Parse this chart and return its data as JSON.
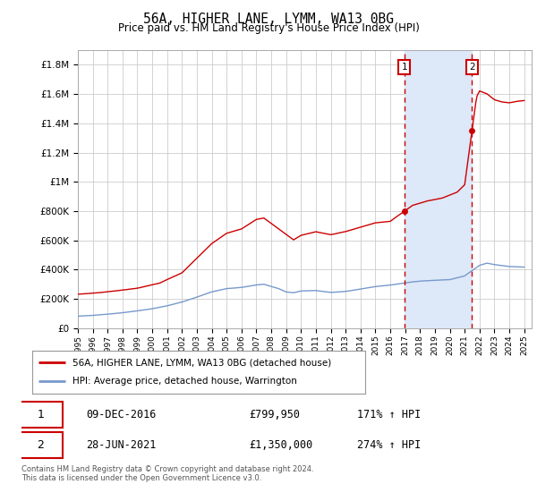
{
  "title": "56A, HIGHER LANE, LYMM, WA13 0BG",
  "subtitle": "Price paid vs. HM Land Registry's House Price Index (HPI)",
  "ylabel_ticks": [
    "£0",
    "£200K",
    "£400K",
    "£600K",
    "£800K",
    "£1M",
    "£1.2M",
    "£1.4M",
    "£1.6M",
    "£1.8M"
  ],
  "ytick_values": [
    0,
    200000,
    400000,
    600000,
    800000,
    1000000,
    1200000,
    1400000,
    1600000,
    1800000
  ],
  "ylim": [
    0,
    1900000
  ],
  "xlim_start": 1995.0,
  "xlim_end": 2025.5,
  "background_color": "#ffffff",
  "plot_background": "#ffffff",
  "grid_color": "#cccccc",
  "red_line_color": "#cc0000",
  "blue_line_color": "#7799cc",
  "shade_color": "#dde8f8",
  "marker1_date": 2016.94,
  "marker1_value": 799950,
  "marker1_label": "1",
  "marker1_text": "09-DEC-2016",
  "marker1_price": "£799,950",
  "marker1_hpi": "171% ↑ HPI",
  "marker2_date": 2021.49,
  "marker2_value": 1350000,
  "marker2_label": "2",
  "marker2_text": "28-JUN-2021",
  "marker2_price": "£1,350,000",
  "marker2_hpi": "274% ↑ HPI",
  "legend_line1": "56A, HIGHER LANE, LYMM, WA13 0BG (detached house)",
  "legend_line2": "HPI: Average price, detached house, Warrington",
  "footer": "Contains HM Land Registry data © Crown copyright and database right 2024.\nThis data is licensed under the Open Government Licence v3.0.",
  "xtick_labels": [
    "1995",
    "1996",
    "1997",
    "1998",
    "1999",
    "2000",
    "2001",
    "2002",
    "2003",
    "2004",
    "2005",
    "2006",
    "2007",
    "2008",
    "2009",
    "2010",
    "2011",
    "2012",
    "2013",
    "2014",
    "2015",
    "2016",
    "2017",
    "2018",
    "2019",
    "2020",
    "2021",
    "2022",
    "2023",
    "2024",
    "2025"
  ]
}
